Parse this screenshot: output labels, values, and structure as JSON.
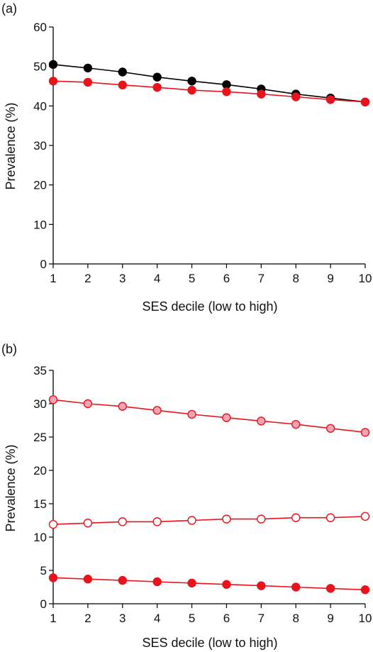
{
  "chart_data": [
    {
      "type": "line",
      "panel_label": "(a)",
      "x": [
        1,
        2,
        3,
        4,
        5,
        6,
        7,
        8,
        9,
        10
      ],
      "xlabel": "SES decile (low to high)",
      "ylabel": "Prevalence (%)",
      "xlim": [
        1,
        10
      ],
      "ylim": [
        0,
        60
      ],
      "yticks": [
        0,
        10,
        20,
        30,
        40,
        50,
        60
      ],
      "xticks": [
        1,
        2,
        3,
        4,
        5,
        6,
        7,
        8,
        9,
        10
      ],
      "grid": false,
      "series": [
        {
          "values": [
            50.5,
            49.6,
            48.6,
            47.3,
            46.3,
            45.4,
            44.3,
            43.0,
            42.0,
            41.0
          ],
          "color": "#000000",
          "marker_fill": "#000000",
          "marker_stroke": "#000000"
        },
        {
          "values": [
            46.3,
            46.0,
            45.3,
            44.7,
            44.0,
            43.6,
            43.0,
            42.3,
            41.6,
            41.0
          ],
          "color": "#e8131b",
          "marker_fill": "#e8131b",
          "marker_stroke": "#e8131b"
        }
      ]
    },
    {
      "type": "line",
      "panel_label": "(b)",
      "x": [
        1,
        2,
        3,
        4,
        5,
        6,
        7,
        8,
        9,
        10
      ],
      "xlabel": "SES decile (low to high)",
      "ylabel": "Prevalence (%)",
      "xlim": [
        1,
        10
      ],
      "ylim": [
        0,
        35
      ],
      "yticks": [
        0,
        5,
        10,
        15,
        20,
        25,
        30,
        35
      ],
      "xticks": [
        1,
        2,
        3,
        4,
        5,
        6,
        7,
        8,
        9,
        10
      ],
      "grid": false,
      "series": [
        {
          "values": [
            30.6,
            30.0,
            29.6,
            29.0,
            28.4,
            27.9,
            27.4,
            26.9,
            26.3,
            25.7
          ],
          "color": "#e8131b",
          "marker_fill": "#f4a3b4",
          "marker_stroke": "#e8131b"
        },
        {
          "values": [
            11.9,
            12.1,
            12.3,
            12.3,
            12.5,
            12.7,
            12.7,
            12.9,
            12.9,
            13.1
          ],
          "color": "#e8131b",
          "marker_fill": "#ffffff",
          "marker_stroke": "#e8131b"
        },
        {
          "values": [
            3.9,
            3.7,
            3.5,
            3.3,
            3.1,
            2.9,
            2.7,
            2.5,
            2.3,
            2.1
          ],
          "color": "#e8131b",
          "marker_fill": "#e8131b",
          "marker_stroke": "#e8131b"
        }
      ]
    }
  ]
}
